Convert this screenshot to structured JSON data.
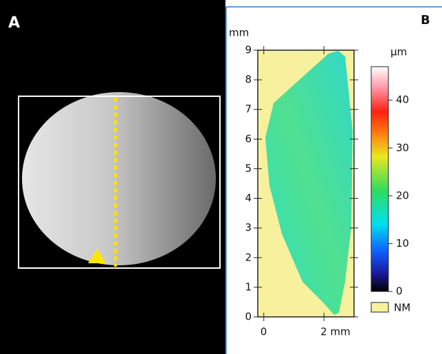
{
  "panel_a": {
    "label": "A"
  },
  "panel_b": {
    "label": "B",
    "y_axis": {
      "unit": "mm",
      "lim": [
        0,
        9
      ],
      "ticks": [
        0,
        1,
        2,
        3,
        4,
        5,
        6,
        7,
        8,
        9
      ]
    },
    "x_axis": {
      "lim": [
        -0.2,
        3
      ],
      "ticks": [
        0,
        {
          "value": 2,
          "label": "2 mm"
        }
      ]
    },
    "colorbar": {
      "unit": "µm",
      "lim": [
        0,
        47
      ],
      "ticks": [
        0,
        10,
        20,
        30,
        40
      ]
    },
    "legend": {
      "label": "NM",
      "color": "#f7f09c"
    }
  }
}
